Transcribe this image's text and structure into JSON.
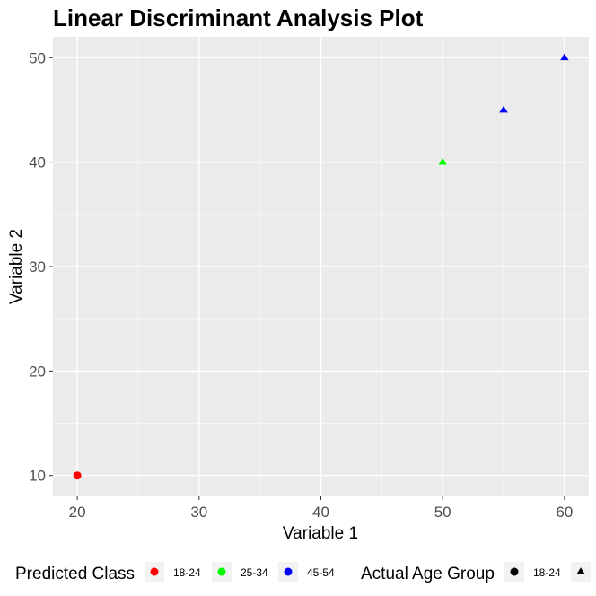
{
  "chart_data": {
    "type": "scatter",
    "title": "Linear Discriminant Analysis Plot",
    "xlabel": "Variable 1",
    "ylabel": "Variable 2",
    "xlim": [
      18.0,
      62.0
    ],
    "ylim": [
      8.0,
      52.0
    ],
    "x_ticks": [
      20,
      30,
      40,
      50,
      60
    ],
    "y_ticks": [
      10,
      20,
      30,
      40,
      50
    ],
    "grid": true,
    "legend_position": "bottom",
    "points": [
      {
        "x": 20,
        "y": 10,
        "predicted_class": "18-24",
        "actual_age_group": "18-24"
      },
      {
        "x": 50,
        "y": 40,
        "predicted_class": "25-34",
        "actual_age_group": "25-34"
      },
      {
        "x": 55,
        "y": 45,
        "predicted_class": "45-54",
        "actual_age_group": "25-34"
      },
      {
        "x": 60,
        "y": 50,
        "predicted_class": "45-54",
        "actual_age_group": "25-34"
      }
    ],
    "legends": {
      "predicted_class": {
        "title": "Predicted Class",
        "entries": [
          {
            "label": "18-24",
            "color": "#ff0000"
          },
          {
            "label": "25-34",
            "color": "#00ff00"
          },
          {
            "label": "45-54",
            "color": "#0000ff"
          }
        ]
      },
      "actual_age_group": {
        "title": "Actual Age Group",
        "entries": [
          {
            "label": "18-24",
            "shape": "circle"
          },
          {
            "label": "",
            "shape": "triangle"
          }
        ]
      }
    }
  }
}
